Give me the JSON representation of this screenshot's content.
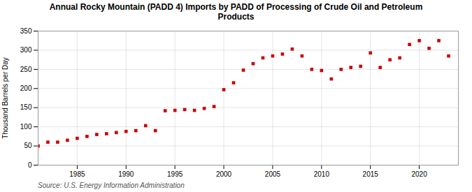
{
  "chart_data": {
    "type": "scatter",
    "title": "Annual Rocky Mountain (PADD 4) Imports by PADD of Processing of Crude Oil and Petroleum\nProducts",
    "ylabel": "Thousand Barrels per Day",
    "annotations": [
      "Source: U.S. Energy Information Administration"
    ],
    "x": [
      1981,
      1982,
      1983,
      1984,
      1985,
      1986,
      1987,
      1988,
      1989,
      1990,
      1991,
      1992,
      1993,
      1994,
      1995,
      1996,
      1997,
      1998,
      1999,
      2000,
      2001,
      2002,
      2003,
      2004,
      2005,
      2006,
      2007,
      2008,
      2009,
      2010,
      2011,
      2012,
      2013,
      2014,
      2015,
      2016,
      2017,
      2018,
      2019,
      2020,
      2021,
      2022,
      2023
    ],
    "values": [
      50,
      60,
      60,
      65,
      70,
      75,
      80,
      82,
      85,
      88,
      90,
      103,
      90,
      142,
      143,
      145,
      143,
      148,
      153,
      197,
      215,
      248,
      265,
      280,
      285,
      290,
      303,
      285,
      250,
      247,
      225,
      250,
      255,
      258,
      293,
      255,
      275,
      280,
      315,
      325,
      305,
      325,
      285
    ],
    "color": "#cc0000",
    "marker": "square",
    "xlim": [
      1981,
      2024
    ],
    "xticks": [
      1985,
      1990,
      1995,
      2000,
      2005,
      2010,
      2015,
      2020
    ],
    "ylim": [
      0,
      350
    ],
    "yticks": [
      0,
      50,
      100,
      150,
      200,
      250,
      300,
      350
    ],
    "grid": true
  }
}
